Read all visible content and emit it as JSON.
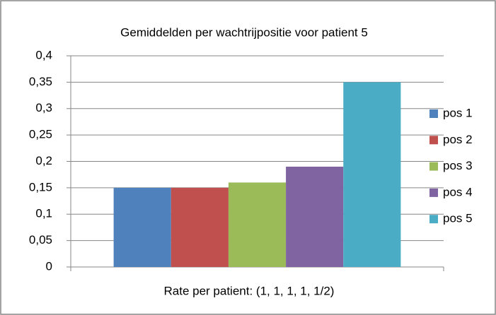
{
  "chart_data": {
    "type": "bar",
    "title": "Gemiddelden per wachtrijpositie voor patient 5",
    "x_label": "Rate per patient: (1, 1, 1, 1, 1/2)",
    "categories": [
      null
    ],
    "series": [
      {
        "name": "pos 1",
        "color": "#4f81bd",
        "values": [
          0.15
        ]
      },
      {
        "name": "pos 2",
        "color": "#c0504d",
        "values": [
          0.15
        ]
      },
      {
        "name": "pos 3",
        "color": "#9bbb59",
        "values": [
          0.16
        ]
      },
      {
        "name": "pos 4",
        "color": "#8064a2",
        "values": [
          0.19
        ]
      },
      {
        "name": "pos 5",
        "color": "#4bacc6",
        "values": [
          0.35
        ]
      }
    ],
    "ylim": [
      0,
      0.4
    ],
    "yticks": [
      0,
      {
        "value": 0.05,
        "label": "0,05"
      },
      {
        "value": 0.1,
        "label": "0,1"
      },
      {
        "value": 0.15,
        "label": "0,15"
      },
      {
        "value": 0.2,
        "label": "0,2"
      },
      {
        "value": 0.25,
        "label": "0,25"
      },
      {
        "value": 0.3,
        "label": "0,3"
      },
      {
        "value": 0.35,
        "label": "0,35"
      },
      {
        "value": 0.4,
        "label": "0,4"
      }
    ],
    "grid": true,
    "legend": "right"
  }
}
